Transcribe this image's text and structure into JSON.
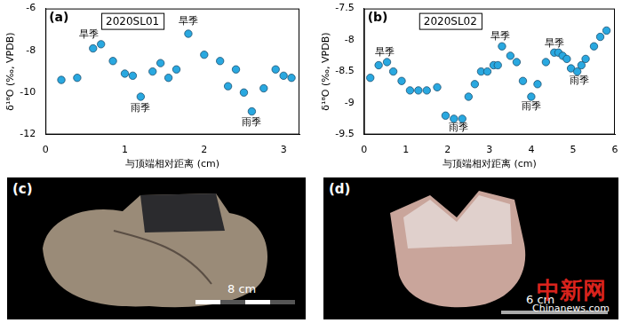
{
  "chart_data": [
    {
      "type": "scatter",
      "panel_label": "(a)",
      "title": "2020SL01",
      "x_label": "与顶端相对距离 (cm)",
      "y_label": "δ¹⁸O (‰, VPDB)",
      "x": [
        0.2,
        0.4,
        0.6,
        0.7,
        0.85,
        1.0,
        1.1,
        1.2,
        1.35,
        1.45,
        1.55,
        1.65,
        1.8,
        2.0,
        2.2,
        2.3,
        2.4,
        2.5,
        2.6,
        2.75,
        2.9,
        3.0,
        3.1
      ],
      "values": [
        -9.4,
        -9.3,
        -7.9,
        -7.7,
        -8.5,
        -9.1,
        -9.2,
        -10.2,
        -9.0,
        -8.6,
        -9.3,
        -8.9,
        -7.2,
        -8.2,
        -8.5,
        -9.7,
        -8.9,
        -10.0,
        -10.9,
        -9.8,
        -8.9,
        -9.2,
        -9.3
      ],
      "color": "#29a8e0",
      "marker": "circle",
      "xlim": [
        0,
        3.2
      ],
      "xticks": [
        0,
        1,
        2,
        3
      ],
      "ylim": [
        -12,
        -6
      ],
      "yticks": [
        -12,
        -10,
        -8,
        -6
      ],
      "grid": false,
      "annotations": [
        {
          "text": "旱季",
          "x": 0.55,
          "y": -7.25
        },
        {
          "text": "雨季",
          "x": 1.2,
          "y": -10.75
        },
        {
          "text": "旱季",
          "x": 1.8,
          "y": -6.6
        },
        {
          "text": "雨季",
          "x": 2.6,
          "y": -11.45
        }
      ]
    },
    {
      "type": "scatter",
      "panel_label": "(b)",
      "title": "2020SL02",
      "x_label": "与顶端相对距离 (cm)",
      "y_label": "δ¹⁸O (‰, VPDB)",
      "x": [
        0.15,
        0.35,
        0.55,
        0.7,
        0.9,
        1.1,
        1.3,
        1.5,
        1.75,
        1.95,
        2.15,
        2.35,
        2.5,
        2.65,
        2.8,
        2.95,
        3.1,
        3.2,
        3.3,
        3.5,
        3.65,
        3.8,
        4.0,
        4.15,
        4.35,
        4.55,
        4.65,
        4.75,
        4.85,
        4.95,
        5.1,
        5.2,
        5.3,
        5.5,
        5.65,
        5.8
      ],
      "values": [
        -8.6,
        -8.4,
        -8.35,
        -8.5,
        -8.65,
        -8.8,
        -8.8,
        -8.8,
        -8.75,
        -9.2,
        -9.25,
        -9.25,
        -8.9,
        -8.7,
        -8.5,
        -8.5,
        -8.4,
        -8.4,
        -8.1,
        -8.25,
        -8.35,
        -8.65,
        -8.9,
        -8.7,
        -8.35,
        -8.2,
        -8.2,
        -8.25,
        -8.3,
        -8.45,
        -8.5,
        -8.4,
        -8.3,
        -8.1,
        -7.95,
        -7.85
      ],
      "color": "#29a8e0",
      "marker": "circle",
      "xlim": [
        0,
        6
      ],
      "xticks": [
        0,
        1,
        2,
        3,
        4,
        5,
        6
      ],
      "ylim": [
        -9.5,
        -7.5
      ],
      "yticks": [
        -9.5,
        -9,
        -8.5,
        -8,
        -7.5
      ],
      "grid": false,
      "annotations": [
        {
          "text": "旱季",
          "x": 0.5,
          "y": -8.2
        },
        {
          "text": "雨季",
          "x": 2.25,
          "y": -9.4
        },
        {
          "text": "旱季",
          "x": 3.25,
          "y": -7.95
        },
        {
          "text": "雨季",
          "x": 4.0,
          "y": -9.05
        },
        {
          "text": "旱季",
          "x": 4.55,
          "y": -8.05
        },
        {
          "text": "雨季",
          "x": 5.15,
          "y": -8.65
        }
      ]
    }
  ],
  "photos": [
    {
      "label": "(c)",
      "scale_bar": "8 cm"
    },
    {
      "label": "(d)",
      "scale_bar": "6 cm"
    }
  ],
  "watermark": {
    "text": "中新网",
    "subtext": "Chinanews.com"
  }
}
